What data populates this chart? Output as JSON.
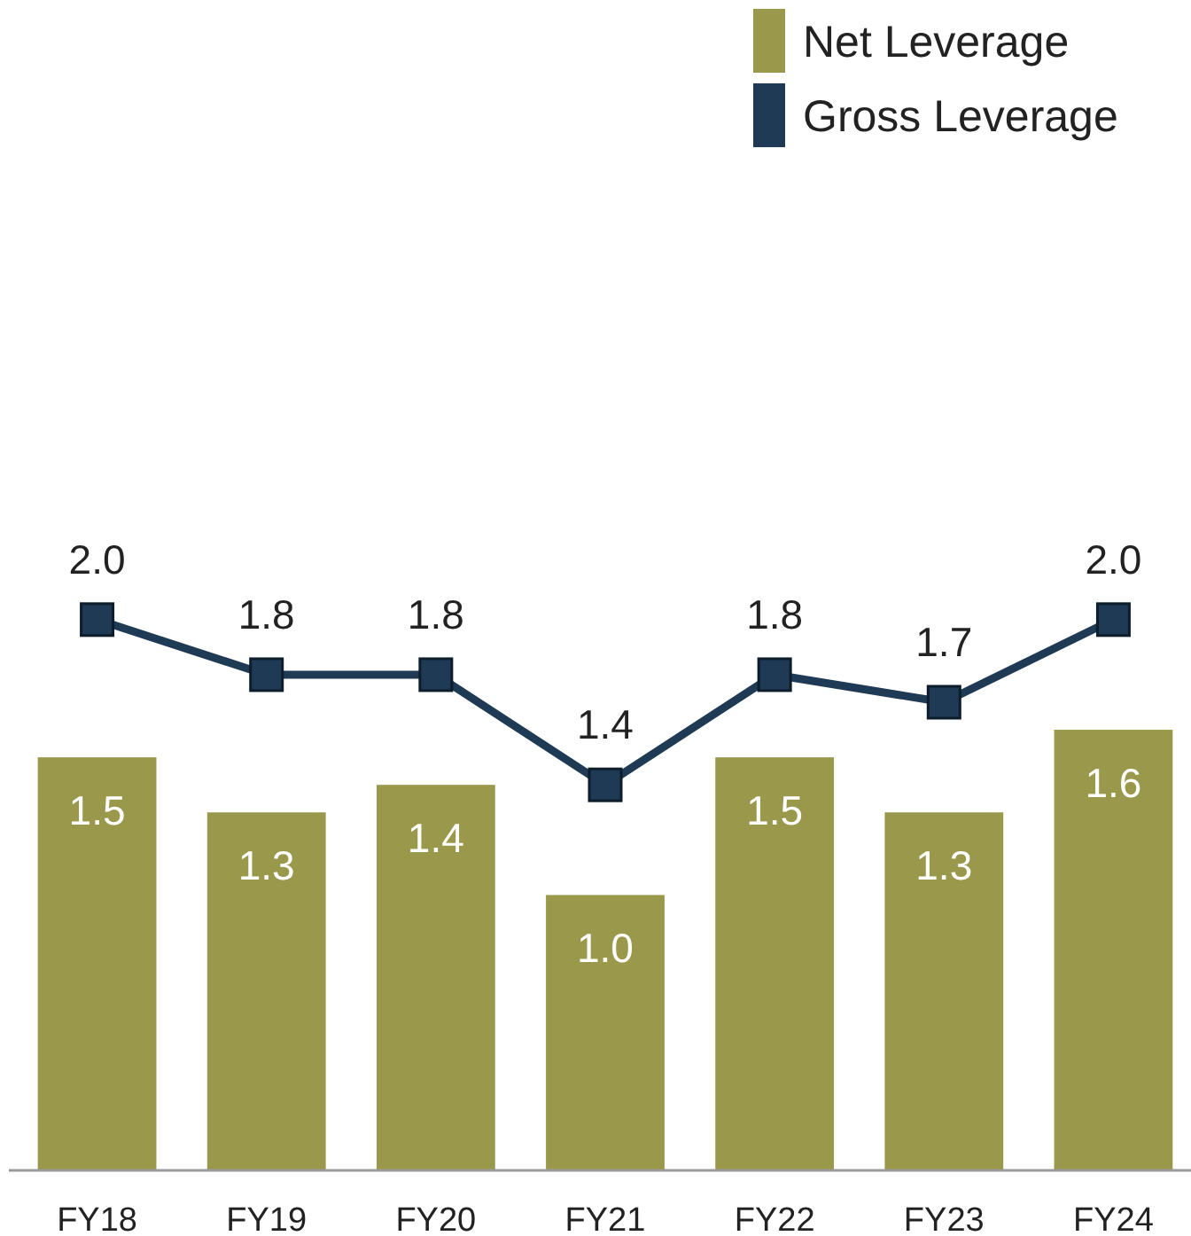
{
  "chart_data": {
    "type": "bar",
    "categories": [
      "FY18",
      "FY19",
      "FY20",
      "FY21",
      "FY22",
      "FY23",
      "FY24"
    ],
    "series": [
      {
        "name": "Net Leverage",
        "color": "#9a984b",
        "values": [
          1.5,
          1.3,
          1.4,
          1.0,
          1.5,
          1.3,
          1.6
        ],
        "value_labels": [
          "1.5",
          "1.3",
          "1.4",
          "1.0",
          "1.5",
          "1.3",
          "1.6"
        ]
      },
      {
        "name": "Gross Leverage",
        "type": "line",
        "color": "#1f3a55",
        "values": [
          2.0,
          1.8,
          1.8,
          1.4,
          1.8,
          1.7,
          2.0
        ],
        "value_labels": [
          "2.0",
          "1.8",
          "1.8",
          "1.4",
          "1.8",
          "1.7",
          "2.0"
        ]
      }
    ],
    "ylim": [
      0,
      4.25
    ],
    "tick_labels": "x",
    "legend": "top right",
    "marker": "square",
    "line_style": "solid"
  }
}
